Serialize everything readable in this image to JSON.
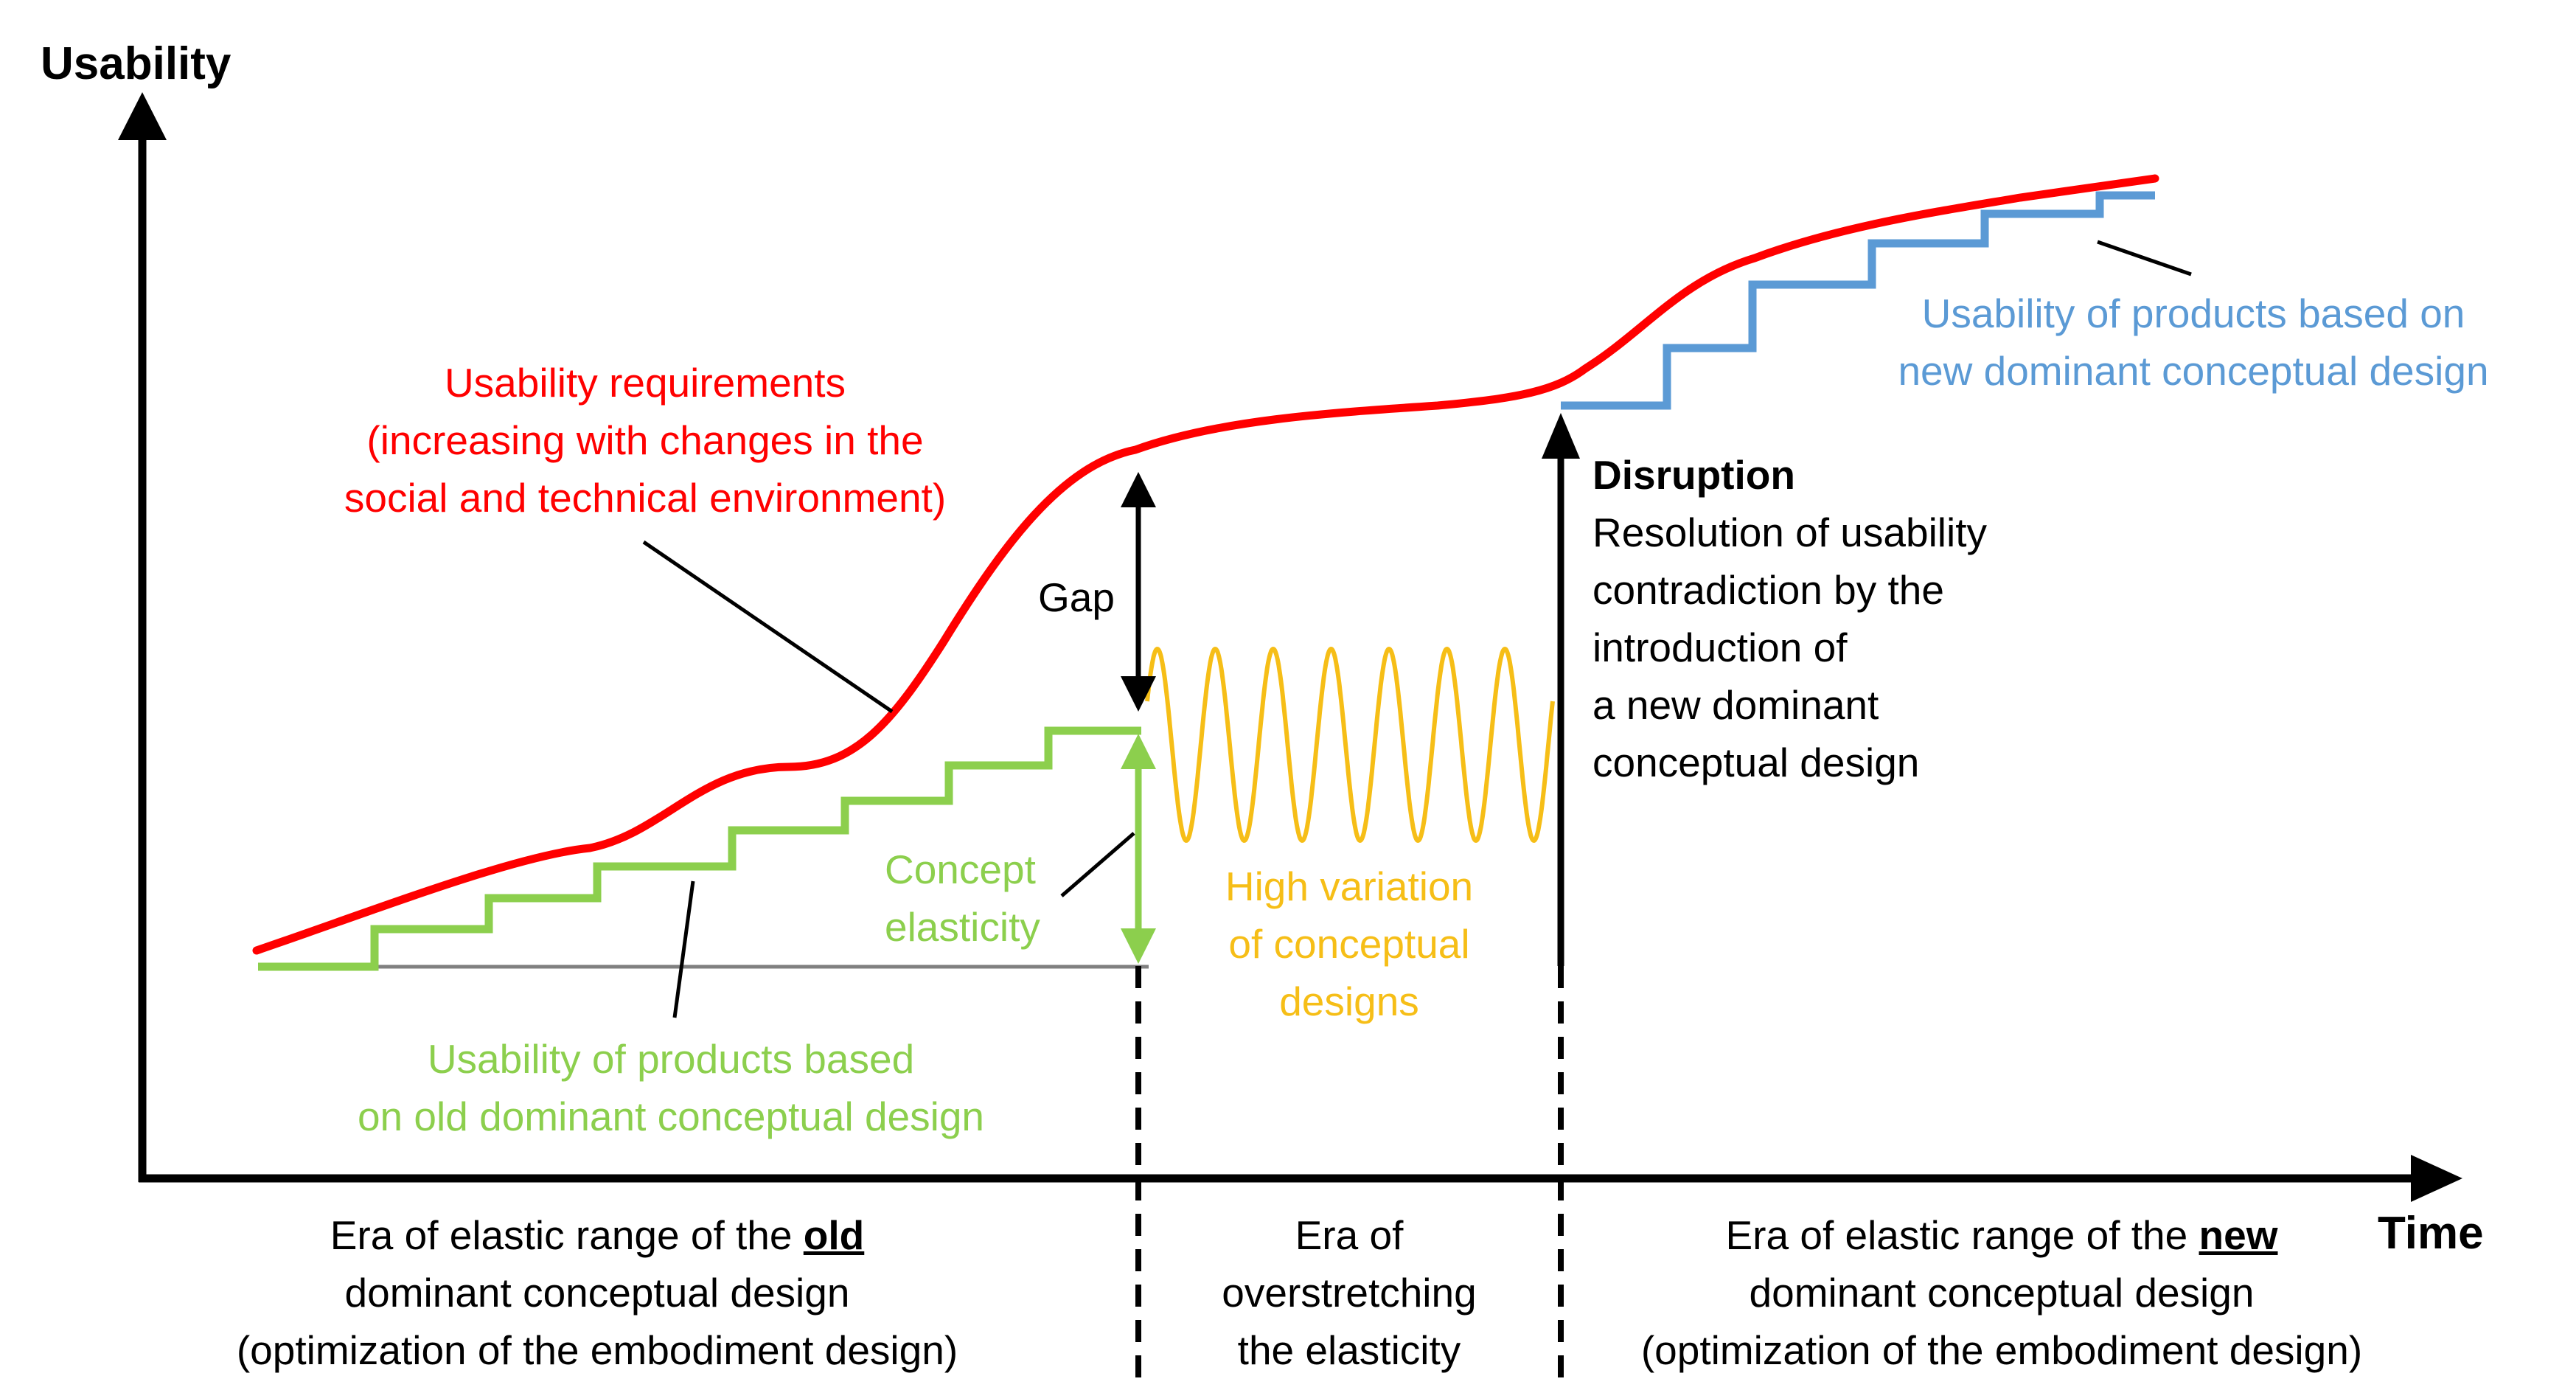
{
  "axes": {
    "y_label": "Usability",
    "x_label": "Time"
  },
  "colors": {
    "requirements": "#ff0000",
    "old_design": "#8ccf4d",
    "variation": "#f6be17",
    "new_design": "#5b9ad5",
    "axis": "#000000",
    "baseline": "#808080"
  },
  "labels": {
    "requirements": [
      "Usability requirements",
      "(increasing with changes in the",
      "social and technical environment)"
    ],
    "gap": "Gap",
    "concept_elasticity": [
      "Concept",
      "elasticity"
    ],
    "old_products": [
      "Usability of products based",
      "on old dominant conceptual design"
    ],
    "variation": [
      "High variation",
      "of conceptual",
      "designs"
    ],
    "disruption_title": "Disruption",
    "disruption_text": [
      "Resolution of usability",
      "contradiction by the",
      "introduction of",
      "a new dominant",
      "conceptual design"
    ],
    "new_products": [
      "Usability of products based on",
      "new dominant conceptual design"
    ]
  },
  "eras": {
    "old": {
      "line1_prefix": "Era of elastic range of the ",
      "line1_emph": "old",
      "line2": "dominant conceptual design",
      "line3": "(optimization of the embodiment design)"
    },
    "over": [
      "Era of",
      "overstretching",
      "the elasticity"
    ],
    "new": {
      "line1_prefix": "Era of elastic range of the ",
      "line1_emph": "new",
      "line2": "dominant conceptual design",
      "line3": "(optimization of the embodiment design)"
    }
  }
}
